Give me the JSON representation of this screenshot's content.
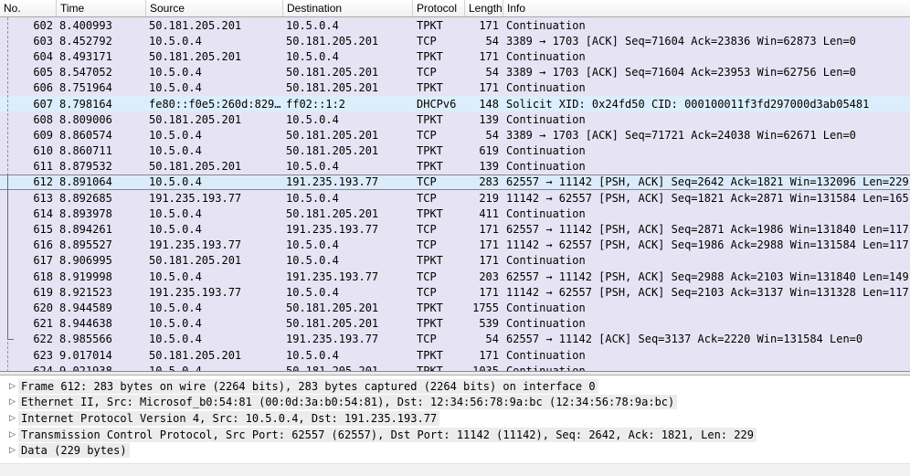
{
  "columns": [
    {
      "key": "no",
      "label": "No."
    },
    {
      "key": "time",
      "label": "Time"
    },
    {
      "key": "src",
      "label": "Source"
    },
    {
      "key": "dst",
      "label": "Destination"
    },
    {
      "key": "proto",
      "label": "Protocol"
    },
    {
      "key": "len",
      "label": "Length"
    },
    {
      "key": "info",
      "label": "Info"
    }
  ],
  "packets": [
    {
      "no": "602",
      "time": "8.400993",
      "source": "50.181.205.201",
      "destination": "10.5.0.4",
      "protocol": "TPKT",
      "length": "171",
      "info": "Continuation",
      "highlight": "lavender",
      "selected": false
    },
    {
      "no": "603",
      "time": "8.452792",
      "source": "10.5.0.4",
      "destination": "50.181.205.201",
      "protocol": "TCP",
      "length": "54",
      "info": "3389 → 1703 [ACK] Seq=71604 Ack=23836 Win=62873 Len=0",
      "highlight": "lavender",
      "selected": false
    },
    {
      "no": "604",
      "time": "8.493171",
      "source": "50.181.205.201",
      "destination": "10.5.0.4",
      "protocol": "TPKT",
      "length": "171",
      "info": "Continuation",
      "highlight": "lavender",
      "selected": false
    },
    {
      "no": "605",
      "time": "8.547052",
      "source": "10.5.0.4",
      "destination": "50.181.205.201",
      "protocol": "TCP",
      "length": "54",
      "info": "3389 → 1703 [ACK] Seq=71604 Ack=23953 Win=62756 Len=0",
      "highlight": "lavender",
      "selected": false
    },
    {
      "no": "606",
      "time": "8.751964",
      "source": "10.5.0.4",
      "destination": "50.181.205.201",
      "protocol": "TPKT",
      "length": "171",
      "info": "Continuation",
      "highlight": "lavender",
      "selected": false
    },
    {
      "no": "607",
      "time": "8.798164",
      "source": "fe80::f0e5:260d:829…",
      "destination": "ff02::1:2",
      "protocol": "DHCPv6",
      "length": "148",
      "info": "Solicit XID: 0x24fd50 CID: 000100011f3fd297000d3ab05481",
      "highlight": "blue",
      "selected": false
    },
    {
      "no": "608",
      "time": "8.809006",
      "source": "50.181.205.201",
      "destination": "10.5.0.4",
      "protocol": "TPKT",
      "length": "139",
      "info": "Continuation",
      "highlight": "lavender",
      "selected": false
    },
    {
      "no": "609",
      "time": "8.860574",
      "source": "10.5.0.4",
      "destination": "50.181.205.201",
      "protocol": "TCP",
      "length": "54",
      "info": "3389 → 1703 [ACK] Seq=71721 Ack=24038 Win=62671 Len=0",
      "highlight": "lavender",
      "selected": false
    },
    {
      "no": "610",
      "time": "8.860711",
      "source": "10.5.0.4",
      "destination": "50.181.205.201",
      "protocol": "TPKT",
      "length": "619",
      "info": "Continuation",
      "highlight": "lavender",
      "selected": false
    },
    {
      "no": "611",
      "time": "8.879532",
      "source": "50.181.205.201",
      "destination": "10.5.0.4",
      "protocol": "TPKT",
      "length": "139",
      "info": "Continuation",
      "highlight": "lavender",
      "selected": false
    },
    {
      "no": "612",
      "time": "8.891064",
      "source": "10.5.0.4",
      "destination": "191.235.193.77",
      "protocol": "TCP",
      "length": "283",
      "info": "62557 → 11142 [PSH, ACK] Seq=2642 Ack=1821 Win=132096 Len=229",
      "highlight": "lavender",
      "selected": true
    },
    {
      "no": "613",
      "time": "8.892685",
      "source": "191.235.193.77",
      "destination": "10.5.0.4",
      "protocol": "TCP",
      "length": "219",
      "info": "11142 → 62557 [PSH, ACK] Seq=1821 Ack=2871 Win=131584 Len=165",
      "highlight": "lavender",
      "selected": false
    },
    {
      "no": "614",
      "time": "8.893978",
      "source": "10.5.0.4",
      "destination": "50.181.205.201",
      "protocol": "TPKT",
      "length": "411",
      "info": "Continuation",
      "highlight": "lavender",
      "selected": false
    },
    {
      "no": "615",
      "time": "8.894261",
      "source": "10.5.0.4",
      "destination": "191.235.193.77",
      "protocol": "TCP",
      "length": "171",
      "info": "62557 → 11142 [PSH, ACK] Seq=2871 Ack=1986 Win=131840 Len=117",
      "highlight": "lavender",
      "selected": false
    },
    {
      "no": "616",
      "time": "8.895527",
      "source": "191.235.193.77",
      "destination": "10.5.0.4",
      "protocol": "TCP",
      "length": "171",
      "info": "11142 → 62557 [PSH, ACK] Seq=1986 Ack=2988 Win=131584 Len=117",
      "highlight": "lavender",
      "selected": false
    },
    {
      "no": "617",
      "time": "8.906995",
      "source": "50.181.205.201",
      "destination": "10.5.0.4",
      "protocol": "TPKT",
      "length": "171",
      "info": "Continuation",
      "highlight": "lavender",
      "selected": false
    },
    {
      "no": "618",
      "time": "8.919998",
      "source": "10.5.0.4",
      "destination": "191.235.193.77",
      "protocol": "TCP",
      "length": "203",
      "info": "62557 → 11142 [PSH, ACK] Seq=2988 Ack=2103 Win=131840 Len=149",
      "highlight": "lavender",
      "selected": false
    },
    {
      "no": "619",
      "time": "8.921523",
      "source": "191.235.193.77",
      "destination": "10.5.0.4",
      "protocol": "TCP",
      "length": "171",
      "info": "11142 → 62557 [PSH, ACK] Seq=2103 Ack=3137 Win=131328 Len=117",
      "highlight": "lavender",
      "selected": false
    },
    {
      "no": "620",
      "time": "8.944589",
      "source": "10.5.0.4",
      "destination": "50.181.205.201",
      "protocol": "TPKT",
      "length": "1755",
      "info": "Continuation",
      "highlight": "lavender",
      "selected": false
    },
    {
      "no": "621",
      "time": "8.944638",
      "source": "10.5.0.4",
      "destination": "50.181.205.201",
      "protocol": "TPKT",
      "length": "539",
      "info": "Continuation",
      "highlight": "lavender",
      "selected": false
    },
    {
      "no": "622",
      "time": "8.985566",
      "source": "10.5.0.4",
      "destination": "191.235.193.77",
      "protocol": "TCP",
      "length": "54",
      "info": "62557 → 11142 [ACK] Seq=3137 Ack=2220 Win=131584 Len=0",
      "highlight": "lavender",
      "selected": false
    },
    {
      "no": "623",
      "time": "9.017014",
      "source": "50.181.205.201",
      "destination": "10.5.0.4",
      "protocol": "TPKT",
      "length": "171",
      "info": "Continuation",
      "highlight": "lavender",
      "selected": false
    },
    {
      "no": "624",
      "time": "9.021938",
      "source": "10.5.0.4",
      "destination": "50.181.205.201",
      "protocol": "TPKT",
      "length": "1035",
      "info": "Continuation",
      "highlight": "lavender",
      "selected": false
    }
  ],
  "detail_lines": [
    "Frame 612: 283 bytes on wire (2264 bits), 283 bytes captured (2264 bits) on interface 0",
    "Ethernet II, Src: Microsof_b0:54:81 (00:0d:3a:b0:54:81), Dst: 12:34:56:78:9a:bc (12:34:56:78:9a:bc)",
    "Internet Protocol Version 4, Src: 10.5.0.4, Dst: 191.235.193.77",
    "Transmission Control Protocol, Src Port: 62557 (62557), Dst Port: 11142 (11142), Seq: 2642, Ack: 1821, Len: 229",
    "Data (229 bytes)"
  ],
  "icons": {
    "expander": "▷"
  },
  "colors": {
    "row_lavender": "#e6e4f4",
    "row_blue": "#dceefb",
    "selected_fill": "#dcebf9",
    "selected_border": "#868686"
  }
}
